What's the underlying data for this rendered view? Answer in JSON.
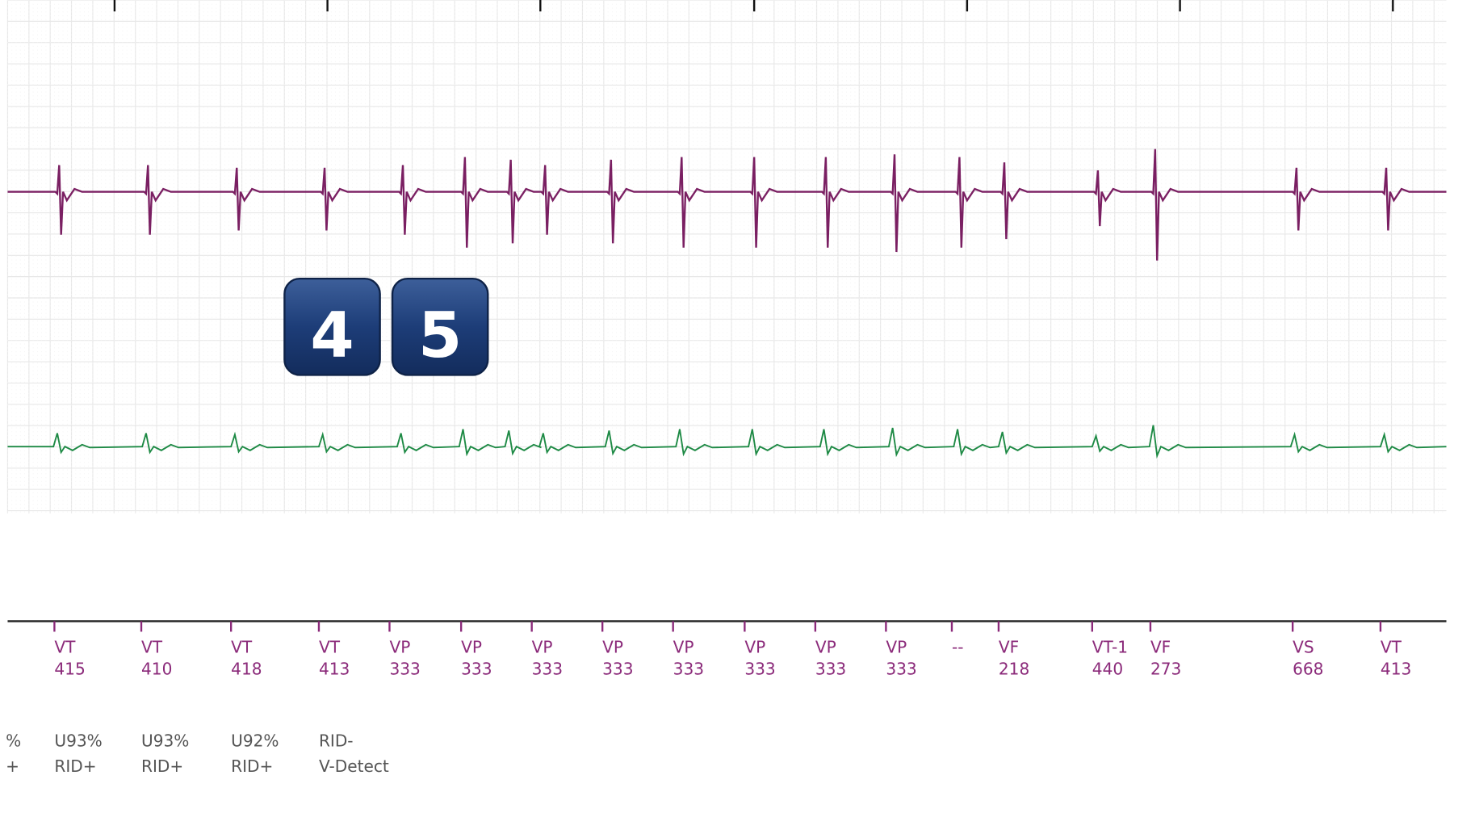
{
  "badges": [
    "4",
    "5"
  ],
  "markers": [
    {
      "label": "VT",
      "interval": 415
    },
    {
      "label": "VT",
      "interval": 410
    },
    {
      "label": "VT",
      "interval": 418
    },
    {
      "label": "VT",
      "interval": 413
    },
    {
      "label": "VP",
      "interval": 333
    },
    {
      "label": "VP",
      "interval": 333
    },
    {
      "label": "VP",
      "interval": 333
    },
    {
      "label": "VP",
      "interval": 333
    },
    {
      "label": "VP",
      "interval": 333
    },
    {
      "label": "VP",
      "interval": 333
    },
    {
      "label": "VP",
      "interval": 333
    },
    {
      "label": "VP",
      "interval": 333
    },
    {
      "label": "--"
    },
    {
      "label": "VF",
      "interval": 218
    },
    {
      "label": "VT-1",
      "interval": 440
    },
    {
      "label": "VF",
      "interval": 273
    },
    {
      "label": "VS",
      "interval": 668
    },
    {
      "label": "VT",
      "interval": 413
    }
  ],
  "annotations": [
    {
      "lines": [
        "%",
        "+"
      ]
    },
    {
      "lines": [
        "U93%",
        "RID+"
      ]
    },
    {
      "lines": [
        "U93%",
        "RID+"
      ]
    },
    {
      "lines": [
        "U92%",
        "RID+"
      ]
    },
    {
      "lines": [
        "RID-",
        "V-Detect"
      ]
    }
  ]
}
